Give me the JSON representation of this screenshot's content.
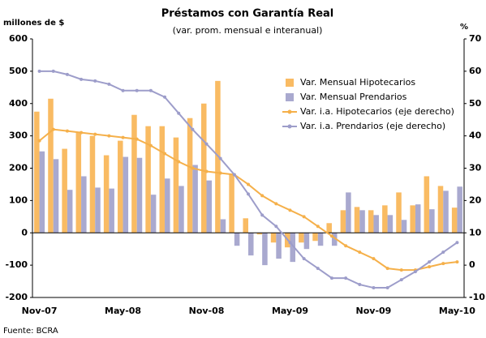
{
  "chart_data": {
    "type": "bar",
    "title": "Préstamos con Garantía Real",
    "subtitle": "(var. prom. mensual e interanual)",
    "ylabel": "millones de $",
    "y2label": "%",
    "source": "Fuente: BCRA",
    "categories": [
      "Nov-07",
      null,
      null,
      null,
      null,
      null,
      "May-08",
      null,
      null,
      null,
      null,
      null,
      "Nov-08",
      null,
      null,
      null,
      null,
      null,
      "May-09",
      null,
      null,
      null,
      null,
      null,
      "Nov-09",
      null,
      null,
      null,
      null,
      null,
      "May-10"
    ],
    "ylim": [
      -200,
      600
    ],
    "yticks": [
      -200,
      -100,
      0,
      100,
      200,
      300,
      400,
      500,
      600
    ],
    "y2lim": [
      -10,
      70
    ],
    "y2ticks": [
      -10,
      0,
      10,
      20,
      30,
      40,
      50,
      60,
      70
    ],
    "series": [
      {
        "name": "Var. Mensual Hipotecarios",
        "type": "bar",
        "color": "#f9bb63",
        "values": [
          375,
          415,
          260,
          310,
          300,
          240,
          285,
          365,
          330,
          330,
          295,
          355,
          400,
          470,
          180,
          45,
          -5,
          -30,
          -45,
          -30,
          -25,
          30,
          70,
          80,
          70,
          85,
          125,
          85,
          175,
          145,
          78
        ]
      },
      {
        "name": "Var. Mensual Prendarios",
        "type": "bar",
        "color": "#a9a9cf",
        "values": [
          252,
          228,
          133,
          175,
          140,
          137,
          235,
          232,
          118,
          168,
          145,
          210,
          162,
          42,
          -40,
          -70,
          -100,
          -80,
          -90,
          -50,
          -40,
          -40,
          125,
          70,
          55,
          55,
          40,
          88,
          73,
          130,
          143
        ]
      },
      {
        "name": "Var. i.a. Hipotecarios (eje derecho)",
        "type": "line",
        "axis": "y2",
        "color": "#f5b04a",
        "values": [
          38.5,
          42,
          41.5,
          41,
          40.5,
          40,
          39.5,
          39,
          37,
          34.5,
          32,
          30,
          29,
          28.5,
          28,
          25,
          21.5,
          19,
          17,
          15,
          12,
          9,
          6,
          4,
          2,
          -1,
          -1.5,
          -1.5,
          -0.5,
          0.5,
          1
        ]
      },
      {
        "name": "Var. i.a. Prendarios (eje derecho)",
        "type": "line",
        "axis": "y2",
        "color": "#9d9dca",
        "values": [
          60,
          60,
          59,
          57.5,
          57,
          56,
          54,
          54,
          54,
          52,
          47,
          42,
          37.5,
          33,
          28,
          22,
          15.5,
          12,
          7,
          2,
          -1,
          -4,
          -4,
          -6,
          -7,
          -7,
          -4.5,
          -2,
          1,
          4,
          7
        ]
      }
    ]
  }
}
